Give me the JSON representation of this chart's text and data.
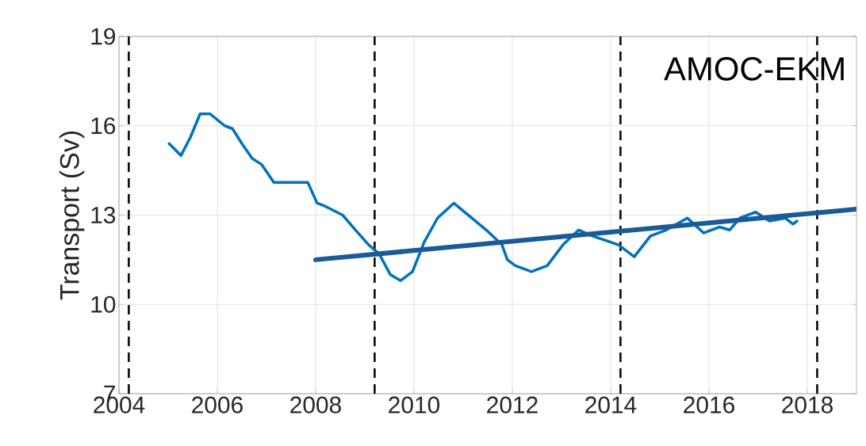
{
  "chart_data": {
    "type": "line",
    "ylabel": "Transport (Sv)",
    "annotations": [
      "AMOC-EKM"
    ],
    "xlim": [
      2004,
      2019
    ],
    "xticks": [
      2004,
      2006,
      2008,
      2010,
      2012,
      2014,
      2016,
      2018
    ],
    "ylim": [
      7,
      19
    ],
    "yticks": [
      7,
      10,
      13,
      16,
      19
    ],
    "grid": true,
    "marker": "none",
    "line_style": "solid",
    "ref_lines": [
      {
        "axis": "x",
        "value": 2004.2,
        "color": "#000000",
        "line_style": "dashed"
      },
      {
        "axis": "x",
        "value": 2009.2,
        "color": "#000000",
        "line_style": "dashed"
      },
      {
        "axis": "x",
        "value": 2014.2,
        "color": "#000000",
        "line_style": "dashed"
      },
      {
        "axis": "x",
        "value": 2018.2,
        "color": "#000000",
        "line_style": "dashed"
      }
    ],
    "series": [
      {
        "color": "#0072bd",
        "x": [
          2005.02,
          2005.26,
          2005.45,
          2005.65,
          2005.85,
          2006.15,
          2006.31,
          2006.5,
          2006.71,
          2006.9,
          2007.15,
          2007.39,
          2007.84,
          2008.03,
          2008.19,
          2008.55,
          2008.81,
          2009.08,
          2009.29,
          2009.52,
          2009.73,
          2009.97,
          2010.21,
          2010.48,
          2010.81,
          2011.47,
          2011.79,
          2011.9,
          2012.06,
          2012.39,
          2012.71,
          2013.03,
          2013.35,
          2013.63,
          2014.16,
          2014.48,
          2014.81,
          2015.13,
          2015.56,
          2015.89,
          2016.21,
          2016.42,
          2016.63,
          2016.95,
          2017.23,
          2017.55,
          2017.71,
          2017.79
        ],
        "values": [
          15.4,
          15.0,
          15.6,
          16.4,
          16.4,
          16.0,
          15.9,
          15.4,
          14.9,
          14.7,
          14.1,
          14.1,
          14.1,
          13.4,
          13.3,
          13.0,
          12.5,
          12.0,
          11.7,
          11.0,
          10.8,
          11.1,
          12.1,
          12.9,
          13.4,
          12.5,
          12.0,
          11.5,
          11.3,
          11.1,
          11.3,
          12.0,
          12.5,
          12.3,
          12.0,
          11.6,
          12.3,
          12.5,
          12.9,
          12.4,
          12.6,
          12.5,
          12.9,
          13.1,
          12.8,
          12.9,
          12.7,
          12.8
        ]
      },
      {
        "color": "#1a5a96",
        "x": [
          2008,
          2019
        ],
        "values": [
          11.5,
          13.2
        ]
      }
    ]
  }
}
